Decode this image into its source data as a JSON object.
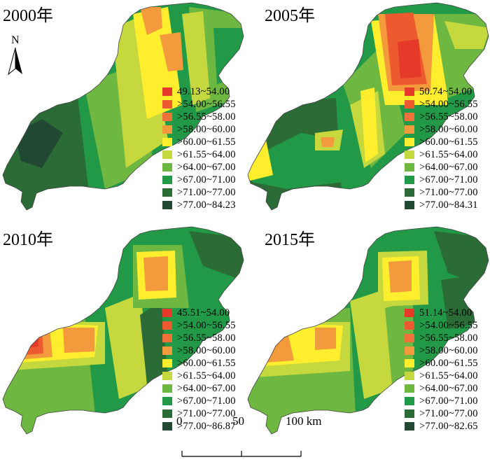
{
  "colors": [
    "#e53a2a",
    "#ee5a30",
    "#f0723a",
    "#f39a3d",
    "#ffee2e",
    "#c5d93e",
    "#6eb741",
    "#219947",
    "#2b6b36",
    "#214833"
  ],
  "panels": [
    {
      "title": "2000年",
      "legend": [
        "49.13~54.00",
        ">54.00~56.55",
        ">56.55~58.00",
        ">58.00~60.00",
        ">60.00~61.55",
        ">61.55~64.00",
        ">64.00~67.00",
        ">67.00~71.00",
        ">71.00~77.00",
        ">77.00~84.23"
      ]
    },
    {
      "title": "2005年",
      "legend": [
        "50.74~54.00",
        ">54.00~56.55",
        ">56.55~58.00",
        ">58.00~60.00",
        ">60.00~61.55",
        ">61.55~64.00",
        ">64.00~67.00",
        ">67.00~71.00",
        ">71.00~77.00",
        ">77.00~84.31"
      ]
    },
    {
      "title": "2010年",
      "legend": [
        "45.51~54.00",
        ">54.00~56.55",
        ">56.55~58.00",
        ">58.00~60.00",
        ">60.00~61.55",
        ">61.55~64.00",
        ">64.00~67.00",
        ">67.00~71.00",
        ">71.00~77.00",
        ">77.00~86.87"
      ]
    },
    {
      "title": "2015年",
      "legend": [
        "51.14~54.00",
        ">54.00~56.55",
        ">56.55~58.00",
        ">58.00~60.00",
        ">60.00~61.55",
        ">61.55~64.00",
        ">64.00~67.00",
        ">67.00~71.00",
        ">71.00~77.00",
        ">77.00~82.65"
      ]
    }
  ],
  "north_label": "N",
  "scale": {
    "labels": [
      "0",
      "50",
      "100 km"
    ]
  }
}
